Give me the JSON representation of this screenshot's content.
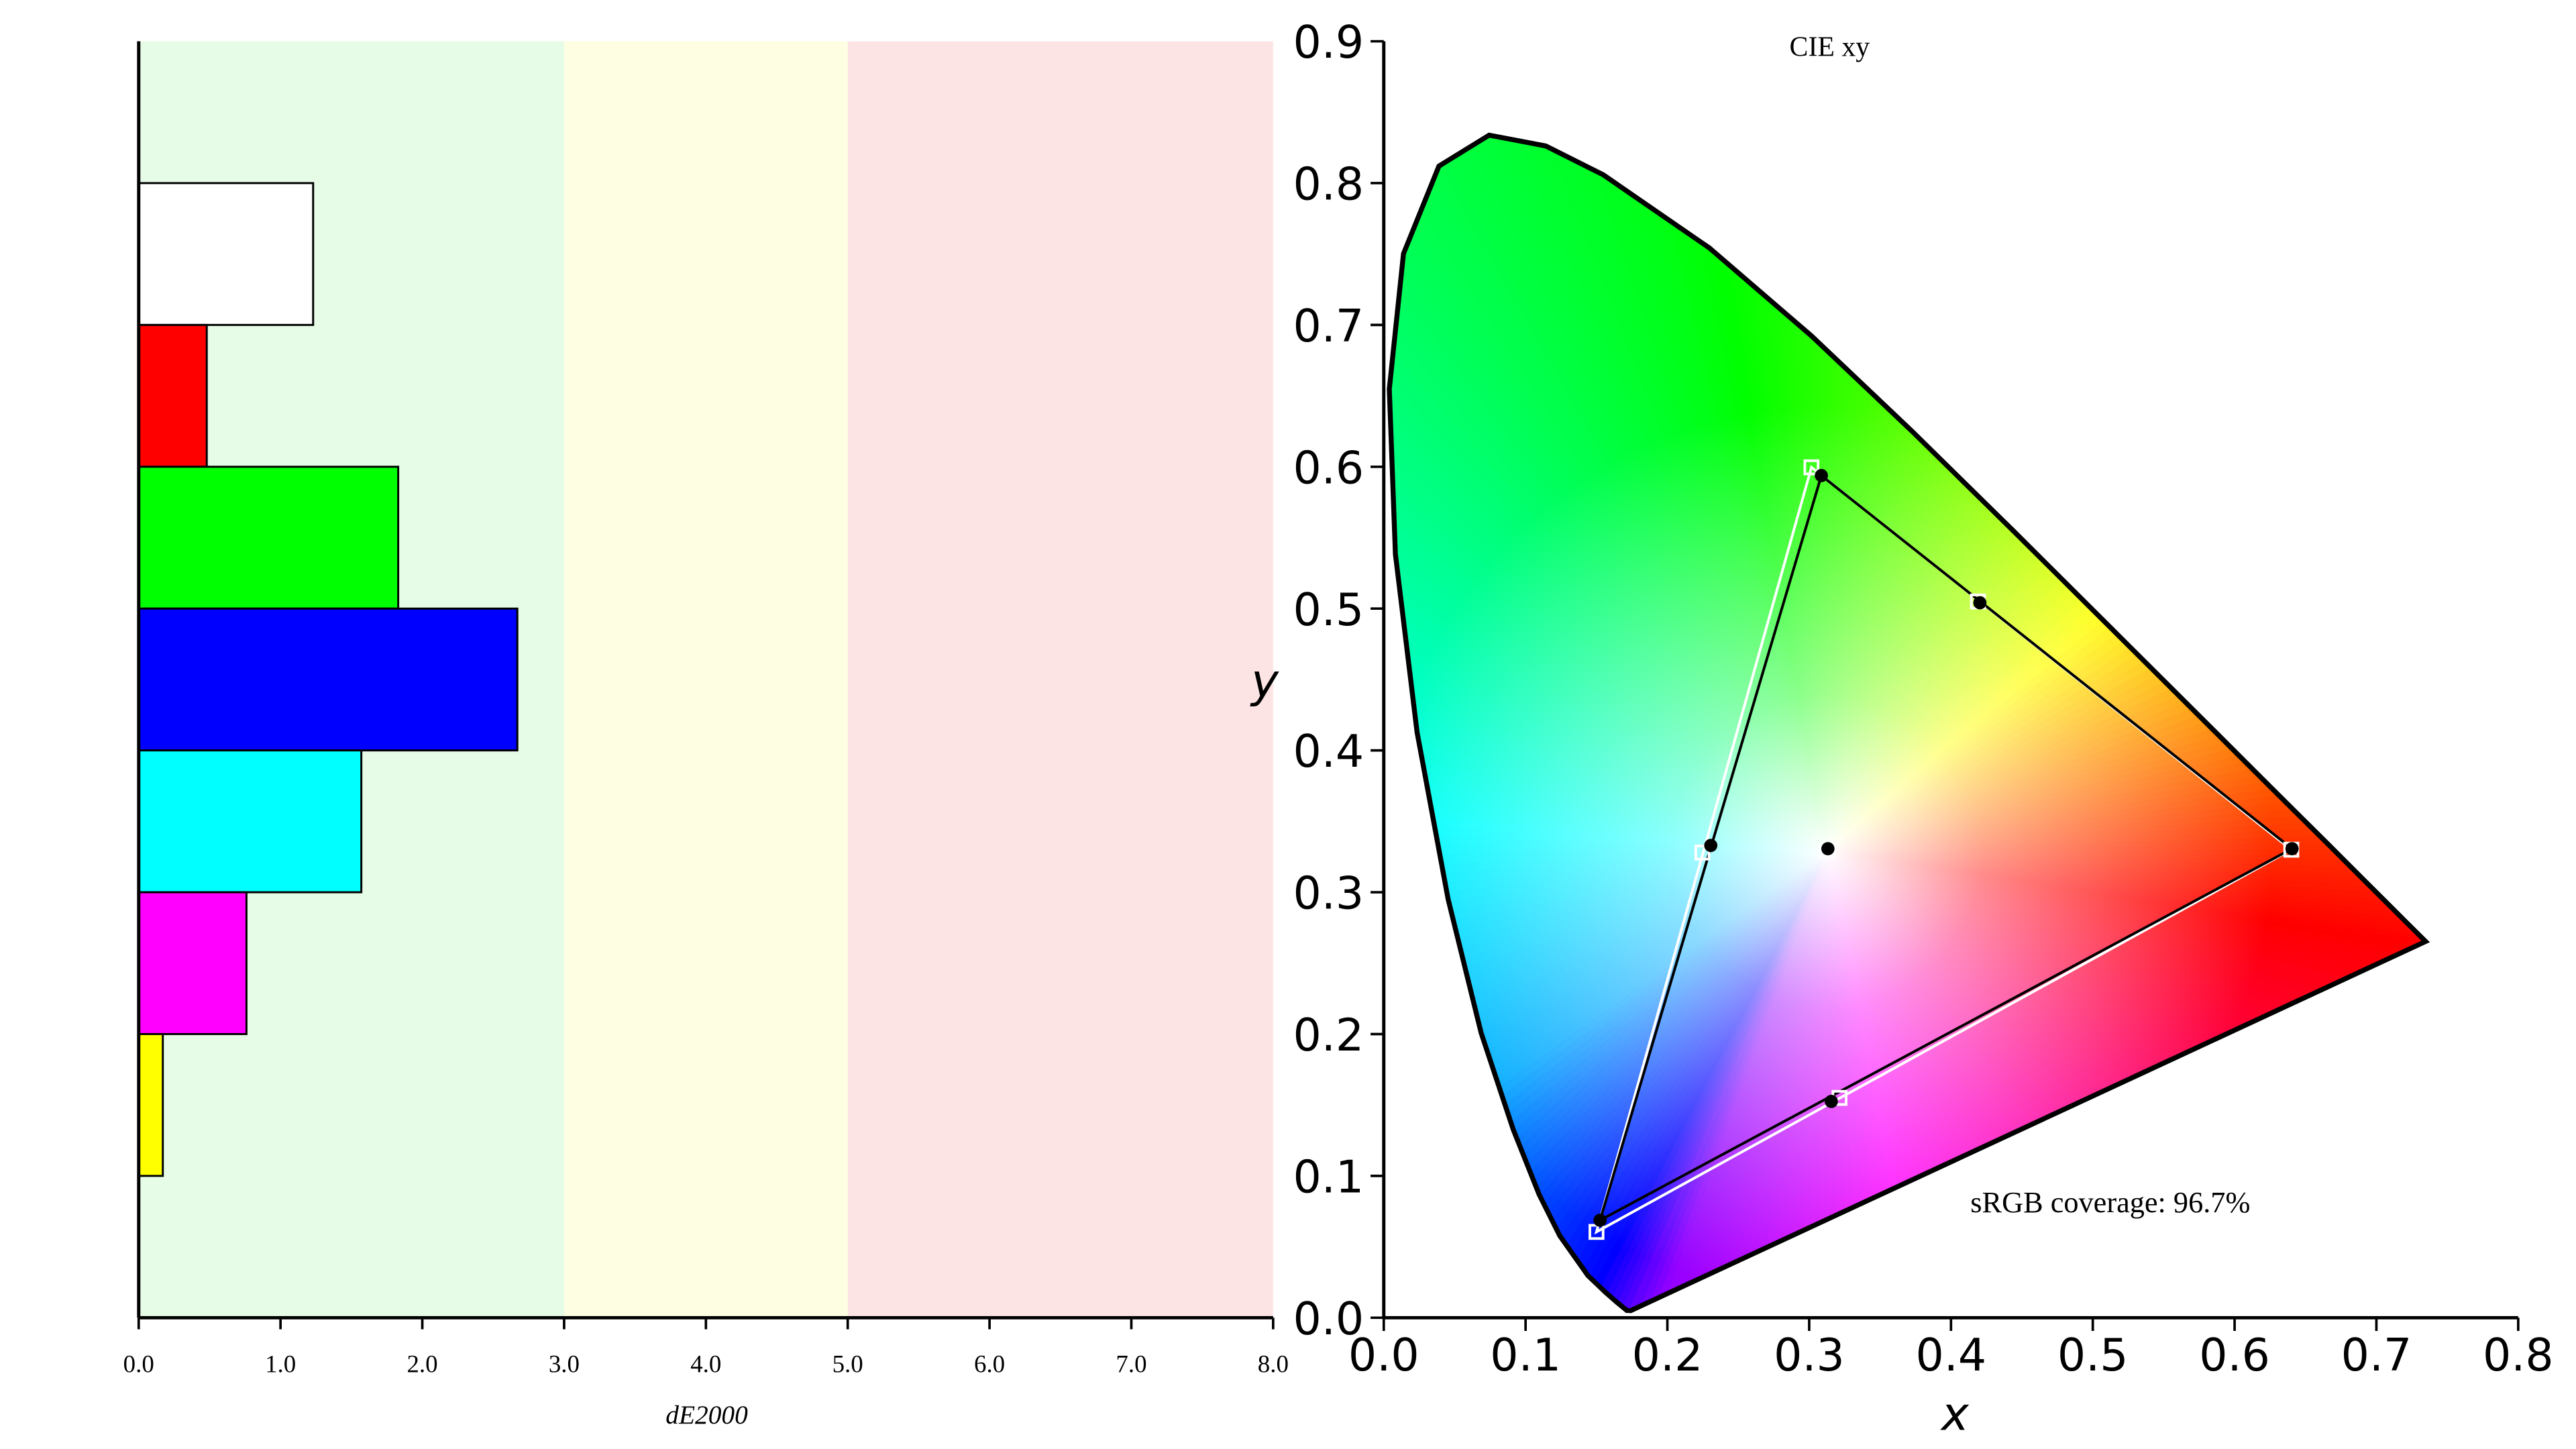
{
  "chart_data": [
    {
      "type": "hbar",
      "xlabel": "dE2000",
      "values": [
        1.23,
        0.48,
        1.83,
        2.67,
        1.57,
        0.76,
        0.17
      ],
      "colors": [
        "#ffffff",
        "#ff0000",
        "#00ff00",
        "#0000ff",
        "#00ffff",
        "#ff00ff",
        "#ffff00"
      ],
      "xlim": [
        0,
        8
      ],
      "xticks": [
        {
          "value": 0,
          "label": "0.0"
        },
        {
          "value": 1,
          "label": "1.0"
        },
        {
          "value": 2,
          "label": "2.0"
        },
        {
          "value": 3,
          "label": "3.0"
        },
        {
          "value": 4,
          "label": "4.0"
        },
        {
          "value": 5,
          "label": "5.0"
        },
        {
          "value": 6,
          "label": "6.0"
        },
        {
          "value": 7,
          "label": "7.0"
        },
        {
          "value": 8,
          "label": "8.0"
        }
      ],
      "bands": [
        {
          "from": 0,
          "to": 3,
          "color": "#e6fce6"
        },
        {
          "from": 3,
          "to": 5,
          "color": "#fefee2"
        },
        {
          "from": 5,
          "to": 8,
          "color": "#fde4e4"
        }
      ]
    },
    {
      "type": "cie",
      "title": "CIE xy",
      "annotation": "sRGB coverage: 96.7%",
      "xlabel": "x",
      "ylabel": "y",
      "xlim": [
        0,
        0.8
      ],
      "ylim": [
        0,
        0.9
      ],
      "xticks": [
        {
          "value": 0,
          "label": "0.0"
        },
        0.1,
        0.2,
        0.3,
        0.4,
        0.5,
        0.6,
        0.7,
        0.8
      ],
      "yticks": [
        {
          "value": 0,
          "label": "0.0"
        },
        0.1,
        0.2,
        0.3,
        0.4,
        0.5,
        0.6,
        0.7,
        0.8,
        0.9
      ],
      "locus": {
        "x": [
          0.1741,
          0.1714,
          0.1644,
          0.1566,
          0.144,
          0.1241,
          0.1096,
          0.0913,
          0.0687,
          0.0454,
          0.0235,
          0.0082,
          0.0039,
          0.0139,
          0.0389,
          0.0743,
          0.1142,
          0.1547,
          0.2296,
          0.3016,
          0.3731,
          0.4441,
          0.5125,
          0.5752,
          0.627,
          0.6658,
          0.6915,
          0.719,
          0.7347
        ],
        "y": [
          0.005,
          0.0051,
          0.0109,
          0.0177,
          0.0297,
          0.0578,
          0.0868,
          0.1327,
          0.2007,
          0.295,
          0.4127,
          0.5384,
          0.6548,
          0.7502,
          0.812,
          0.8338,
          0.8262,
          0.8059,
          0.7543,
          0.6923,
          0.6245,
          0.5547,
          0.4866,
          0.4242,
          0.3725,
          0.334,
          0.3083,
          0.2809,
          0.2653
        ]
      },
      "target": {
        "color": "#ffffff",
        "x": [
          0.64,
          0.3016,
          0.15,
          0.2247,
          0.3214,
          0.419,
          0.3127
        ],
        "y": [
          0.33,
          0.5996,
          0.0605,
          0.328,
          0.155,
          0.505,
          0.329
        ]
      },
      "measured": {
        "color": "#000000",
        "x": [
          0.6405,
          0.3086,
          0.1525,
          0.2306,
          0.3156,
          0.4204,
          0.3132
        ],
        "y": [
          0.3307,
          0.5938,
          0.0687,
          0.333,
          0.1525,
          0.5041,
          0.3307
        ]
      }
    }
  ]
}
